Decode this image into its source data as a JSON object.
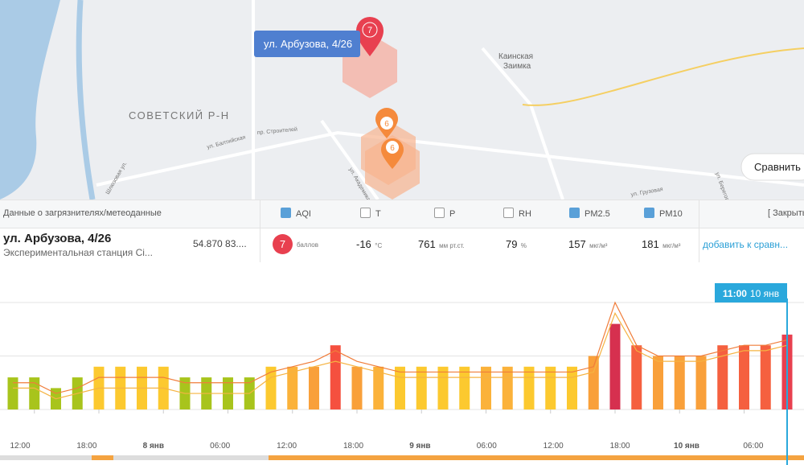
{
  "map": {
    "district": "СОВЕТСКИЙ Р-Н",
    "place": "Каинская\nЗаимка",
    "streets": [
      "ул. Балтийская",
      "пр. Строителей",
      "Шлюзовая ул.",
      "ул. Академика Л",
      "ул. Грузовая",
      "ул. Береговая"
    ],
    "tooltip": "ул. Арбузова, 4/26",
    "markers": [
      "7",
      "6",
      "6"
    ],
    "compare_button": "Сравнить"
  },
  "table": {
    "header": "Данные о загрязнителях/метеоданные",
    "columns": [
      {
        "label": "AQI",
        "checked": true
      },
      {
        "label": "T",
        "checked": false
      },
      {
        "label": "P",
        "checked": false
      },
      {
        "label": "RH",
        "checked": false
      },
      {
        "label": "PM2.5",
        "checked": true
      },
      {
        "label": "PM10",
        "checked": true
      }
    ],
    "close": "[ Закрыть",
    "row": {
      "name": "ул. Арбузова, 4/26",
      "station": "Экспериментальная станция Сі...",
      "coords": "54.870 83....",
      "aqi": "7",
      "aqi_unit": "баллов",
      "t": -16,
      "t_unit": "°C",
      "p": 761,
      "p_unit": "мм рт.ст.",
      "rh": 79,
      "rh_unit": "%",
      "pm25": 157,
      "pm25_unit": "мкг/м³",
      "pm10": 181,
      "pm10_unit": "мкг/м³",
      "add": "добавить к сравн..."
    }
  },
  "chart_data": {
    "type": "bar",
    "ylim": [
      0,
      10
    ],
    "values": [
      3,
      3,
      2,
      3,
      4,
      4,
      4,
      4,
      3,
      3,
      3,
      3,
      4,
      4,
      4,
      6,
      4,
      4,
      4,
      4,
      4,
      4,
      4,
      4,
      4,
      4,
      4,
      5,
      8,
      6,
      5,
      5,
      5,
      6,
      6,
      6,
      7
    ],
    "colors": [
      "#a8c41c",
      "#a8c41c",
      "#a8c41c",
      "#a8c41c",
      "#fcc92f",
      "#fcc92f",
      "#fcc92f",
      "#fcc92f",
      "#a8c41c",
      "#a8c41c",
      "#a8c41c",
      "#a8c41c",
      "#fcc92f",
      "#fbb23a",
      "#f9a03a",
      "#f5503f",
      "#f9a03a",
      "#fbb23a",
      "#fcc92f",
      "#fcc92f",
      "#fcc92f",
      "#fcc92f",
      "#fbb23a",
      "#fbb23a",
      "#fcc92f",
      "#fcc92f",
      "#fcc92f",
      "#f9a03a",
      "#d6304f",
      "#f5603f",
      "#f9a03a",
      "#f9a03a",
      "#f9a03a",
      "#f5603f",
      "#f5603f",
      "#f5603f",
      "#e8404f"
    ],
    "lines": [
      {
        "color": "#f07d3a",
        "values": [
          2.5,
          2.5,
          1.5,
          2,
          3,
          3,
          3,
          3,
          2.5,
          2.5,
          2.5,
          2.5,
          3.5,
          4,
          4.5,
          5.5,
          4.5,
          4,
          3.5,
          3.5,
          3.5,
          3.5,
          3.5,
          3.5,
          3.5,
          3.5,
          3.5,
          4,
          10,
          6,
          5,
          5,
          5,
          5.5,
          6,
          6,
          6.5
        ]
      },
      {
        "color": "#f5b342",
        "values": [
          2,
          2,
          1,
          1.5,
          2,
          2,
          2,
          2,
          1.5,
          1.5,
          1.5,
          1.5,
          3,
          3.5,
          4,
          4.5,
          4,
          3.5,
          3,
          3,
          3,
          3,
          3,
          3,
          3,
          3,
          3,
          3.5,
          9,
          5.5,
          4.5,
          4.5,
          4.5,
          5,
          5.5,
          5.5,
          6
        ]
      }
    ],
    "x_labels": [
      "12:00",
      "18:00",
      "8 янв",
      "06:00",
      "12:00",
      "18:00",
      "9 янв",
      "06:00",
      "12:00",
      "18:00",
      "10 янв",
      "06:00"
    ],
    "cursor": {
      "time": "11:00",
      "date": "10 янв"
    }
  }
}
